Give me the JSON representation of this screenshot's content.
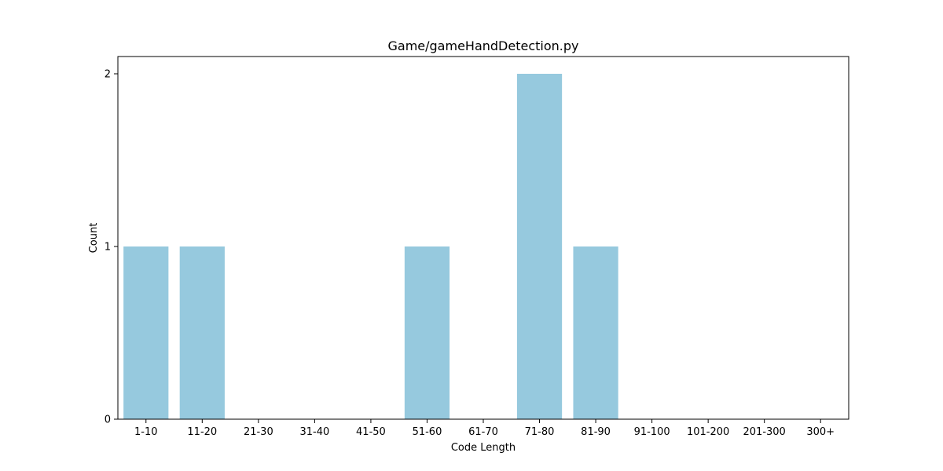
{
  "chart_data": {
    "type": "bar",
    "title": "Game/gameHandDetection.py",
    "xlabel": "Code Length",
    "ylabel": "Count",
    "categories": [
      "1-10",
      "11-20",
      "21-30",
      "31-40",
      "41-50",
      "51-60",
      "61-70",
      "71-80",
      "81-90",
      "91-100",
      "101-200",
      "201-300",
      "300+"
    ],
    "values": [
      1,
      1,
      0,
      0,
      0,
      1,
      0,
      2,
      1,
      0,
      0,
      0,
      0
    ],
    "ylim": [
      0,
      2.1
    ],
    "yticks": [
      0,
      1,
      2
    ],
    "grid": false,
    "bar_color": "#96c9de",
    "axis_color": "#000000",
    "background": "#ffffff"
  }
}
